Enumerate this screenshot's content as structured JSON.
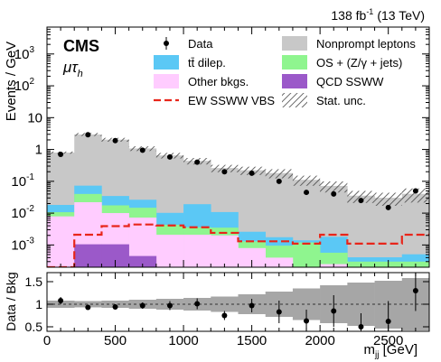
{
  "header": {
    "lumi": "138 fb",
    "lumi_exp": "-1",
    "energy": "(13 TeV)"
  },
  "experiment": "CMS",
  "channel": {
    "base": "μτ",
    "sub": "h"
  },
  "legend": {
    "col1": [
      {
        "key": "data",
        "label": "Data",
        "style": "marker"
      },
      {
        "key": "ttbar",
        "label": "tt̄ dilep.",
        "style": "fill",
        "color": "#5bc8f5"
      },
      {
        "key": "other",
        "label": "Other bkgs.",
        "style": "fill",
        "color": "#ffccff"
      },
      {
        "key": "ew",
        "label": "EW SSWW VBS",
        "style": "line",
        "color": "#e8251a"
      }
    ],
    "col2": [
      {
        "key": "nonprompt",
        "label": "Nonprompt leptons",
        "style": "fill",
        "color": "#c8c8c8"
      },
      {
        "key": "os",
        "label": "OS + (Z/γ + jets)",
        "style": "fill",
        "color": "#8ff58f"
      },
      {
        "key": "qcd",
        "label": "QCD SSWW",
        "style": "fill",
        "color": "#9b59c9"
      },
      {
        "key": "unc",
        "label": "Stat. unc.",
        "style": "hatch"
      }
    ]
  },
  "chart_data": [
    {
      "type": "area",
      "stacked": true,
      "ylabel": "Events / GeV",
      "yscale": "log",
      "ylim": [
        0.0002,
        7000
      ],
      "xlim": [
        0,
        2800
      ],
      "yticks": [
        {
          "v": 0.001,
          "b": "10",
          "e": "-3"
        },
        {
          "v": 0.01,
          "b": "10",
          "e": "-2"
        },
        {
          "v": 0.1,
          "b": "10",
          "e": "-1"
        },
        {
          "v": 1,
          "b": "1",
          "e": ""
        },
        {
          "v": 10,
          "b": "10",
          "e": ""
        },
        {
          "v": 100,
          "b": "10",
          "e": "2"
        },
        {
          "v": 1000,
          "b": "10",
          "e": "3"
        }
      ],
      "bin_edges": [
        0,
        200,
        400,
        600,
        800,
        1000,
        1200,
        1400,
        1600,
        1800,
        2000,
        2200,
        2400,
        2600,
        2800
      ],
      "series": [
        {
          "name": "QCD SSWW",
          "color": "#9b59c9",
          "values": [
            0.0001,
            0.00105,
            0.00105,
            0.00045,
            0.0002,
            0.0002,
            0.0001,
            0.0001,
            0.0001,
            0.0001,
            0.0001,
            0.0001,
            0.0001,
            0.0001
          ]
        },
        {
          "name": "Other bkgs.",
          "color": "#ffccff",
          "values": [
            0.0078,
            0.021,
            0.009,
            0.0068,
            0.0019,
            0.0019,
            0.0019,
            0.0007,
            0.0003,
            0.0001,
            0.00015,
            0.0001,
            0.0001,
            0.0001
          ]
        },
        {
          "name": "OS + (Z/γ + jets)",
          "color": "#8ff58f",
          "values": [
            0.0028,
            0.018,
            0.0075,
            0.0075,
            0.0022,
            0.0015,
            0.0015,
            0.0005,
            0.00055,
            0.001,
            0.00032,
            0.0001,
            0.0001,
            0.0001
          ]
        },
        {
          "name": "tt̄ dilep.",
          "color": "#5bc8f5",
          "values": [
            0.0074,
            0.033,
            0.017,
            0.0116,
            0.0059,
            0.0155,
            0.0073,
            0.0013,
            0.0008,
            0.0002,
            0.00123,
            0.00011,
            0.00011,
            0.00021
          ]
        },
        {
          "name": "Nonprompt leptons",
          "color": "#c8c8c8",
          "values": [
            0.78,
            2.9,
            2.0,
            1.05,
            0.64,
            0.42,
            0.25,
            0.22,
            0.18,
            0.11,
            0.07,
            0.035,
            0.03,
            0.04
          ]
        }
      ],
      "signal": {
        "name": "EW SSWW VBS",
        "color": "#e8251a",
        "values": [
          0.0002,
          0.0021,
          0.0039,
          0.0044,
          0.0041,
          0.0036,
          0.0024,
          0.0013,
          0.0013,
          0.0011,
          0.0021,
          0.0011,
          0.0011,
          0.0021
        ]
      },
      "data": {
        "name": "Data",
        "x": [
          100,
          300,
          500,
          700,
          900,
          1100,
          1300,
          1500,
          1700,
          1900,
          2100,
          2300,
          2500,
          2700
        ],
        "y": [
          0.7,
          2.9,
          1.9,
          0.95,
          0.58,
          0.4,
          0.2,
          0.18,
          0.1,
          0.045,
          0.04,
          0.025,
          0.015,
          0.05
        ]
      }
    },
    {
      "type": "scatter",
      "ylabel": "Data / Bkg",
      "xlabel": "m",
      "xlabel_sub": "jj",
      "xlabel_unit": " [GeV]",
      "ylim": [
        0.4,
        1.7
      ],
      "xlim": [
        0,
        2800
      ],
      "yticks": [
        0.5,
        1,
        1.5
      ],
      "xticks": [
        0,
        500,
        1000,
        1500,
        2000,
        2500
      ],
      "unc_band": [
        {
          "x0": 0,
          "x1": 200,
          "lo": 0.92,
          "hi": 1.08
        },
        {
          "x0": 200,
          "x1": 400,
          "lo": 0.93,
          "hi": 1.07
        },
        {
          "x0": 400,
          "x1": 600,
          "lo": 0.92,
          "hi": 1.08
        },
        {
          "x0": 600,
          "x1": 800,
          "lo": 0.9,
          "hi": 1.1
        },
        {
          "x0": 800,
          "x1": 1000,
          "lo": 0.88,
          "hi": 1.12
        },
        {
          "x0": 1000,
          "x1": 1200,
          "lo": 0.86,
          "hi": 1.14
        },
        {
          "x0": 1200,
          "x1": 1400,
          "lo": 0.83,
          "hi": 1.17
        },
        {
          "x0": 1400,
          "x1": 1600,
          "lo": 0.78,
          "hi": 1.22
        },
        {
          "x0": 1600,
          "x1": 1800,
          "lo": 0.72,
          "hi": 1.28
        },
        {
          "x0": 1800,
          "x1": 2000,
          "lo": 0.65,
          "hi": 1.35
        },
        {
          "x0": 2000,
          "x1": 2200,
          "lo": 0.58,
          "hi": 1.42
        },
        {
          "x0": 2200,
          "x1": 2400,
          "lo": 0.52,
          "hi": 1.48
        },
        {
          "x0": 2400,
          "x1": 2600,
          "lo": 0.46,
          "hi": 1.52
        },
        {
          "x0": 2600,
          "x1": 2800,
          "lo": 0.42,
          "hi": 1.58
        }
      ],
      "points": {
        "x": [
          100,
          300,
          500,
          700,
          900,
          1100,
          1300,
          1500,
          1700,
          1900,
          2100,
          2300,
          2500,
          2700
        ],
        "y": [
          1.08,
          0.93,
          0.94,
          0.97,
          0.97,
          1.01,
          0.75,
          0.97,
          0.83,
          0.63,
          0.85,
          0.5,
          0.62,
          1.3
        ],
        "err": [
          0.08,
          0.05,
          0.06,
          0.07,
          0.1,
          0.12,
          0.1,
          0.15,
          0.25,
          0.25,
          0.35,
          0.3,
          0.45,
          0.45
        ]
      }
    }
  ]
}
